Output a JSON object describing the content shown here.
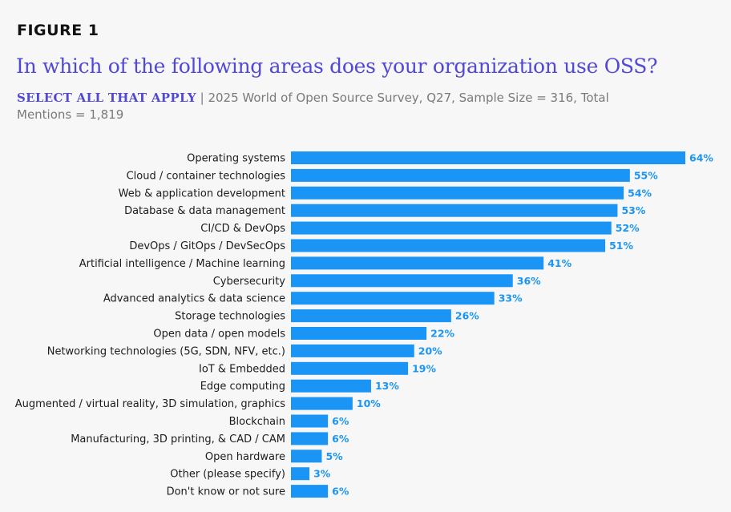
{
  "figure_label": "FIGURE 1",
  "colors": {
    "bar": "#1b95f5",
    "title": "#5148d6",
    "subtitle": "#7a7a7a",
    "background": "#f7f7f7"
  },
  "chart_data": {
    "type": "bar",
    "orientation": "horizontal",
    "title": "In which of the following areas does your organization use OSS?",
    "subtitle_emphasis": "SELECT ALL THAT APPLY",
    "subtitle": "| 2025 World of Open Source Survey, Q27, Sample Size = 316, Total Mentions = 1,819",
    "xlabel": "",
    "ylabel": "",
    "xlim": [
      0,
      64
    ],
    "grid": false,
    "legend": "none",
    "categories": [
      "Operating systems",
      "Cloud / container technologies",
      "Web & application development",
      "Database & data management",
      "CI/CD & DevOps",
      "DevOps / GitOps / DevSecOps",
      "Artificial intelligence / Machine learning",
      "Cybersecurity",
      "Advanced analytics & data science",
      "Storage technologies",
      "Open data / open models",
      "Networking technologies (5G, SDN, NFV, etc.)",
      "IoT & Embedded",
      "Edge computing",
      "Augmented / virtual reality, 3D simulation, graphics",
      "Blockchain",
      "Manufacturing, 3D printing, & CAD / CAM",
      "Open hardware",
      "Other (please specify)",
      "Don't know or not sure"
    ],
    "values": [
      64,
      55,
      54,
      53,
      52,
      51,
      41,
      36,
      33,
      26,
      22,
      20,
      19,
      13,
      10,
      6,
      6,
      5,
      3,
      6
    ],
    "value_labels": [
      "64%",
      "55%",
      "54%",
      "53%",
      "52%",
      "51%",
      "41%",
      "36%",
      "33%",
      "26%",
      "22%",
      "20%",
      "19%",
      "13%",
      "10%",
      "6%",
      "6%",
      "5%",
      "3%",
      "6%"
    ],
    "unit": "%"
  }
}
